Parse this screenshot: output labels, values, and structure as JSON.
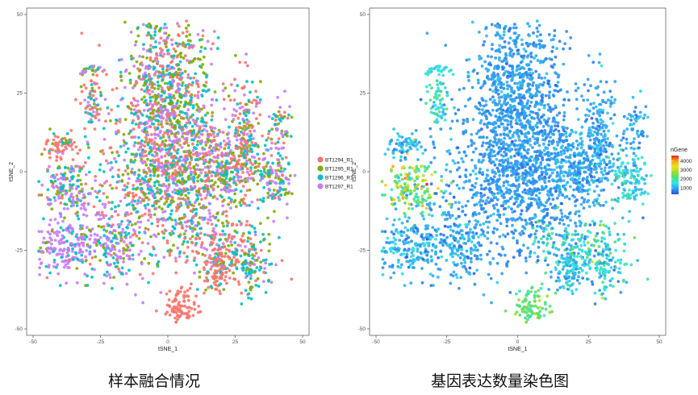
{
  "captions": [
    "样本融合情况",
    "基因表达数量染色图"
  ],
  "chart_data": [
    {
      "type": "scatter",
      "title": "",
      "xlabel": "tSNE_1",
      "ylabel": "tSNE_2",
      "xlim": [
        -50,
        50
      ],
      "ylim": [
        -50,
        50
      ],
      "xticks": [
        "-50",
        "-25",
        "0",
        "25",
        "50"
      ],
      "yticks": [
        "-50",
        "-25",
        "0",
        "25",
        "50"
      ],
      "color_by": "sample",
      "legend": "right",
      "series": [
        {
          "name": "BT1294_R1",
          "color": "#F8766D"
        },
        {
          "name": "BT1295_R1",
          "color": "#7CAE00"
        },
        {
          "name": "BT1296_R1",
          "color": "#00BFC4"
        },
        {
          "name": "BT1297_R1",
          "color": "#C77CFF"
        }
      ],
      "clusters": [
        {
          "x": 0,
          "y": 25,
          "sx": 8,
          "sy": 13,
          "n": 750,
          "mix": [
            0.25,
            0.25,
            0.25,
            0.25
          ]
        },
        {
          "x": 1,
          "y": -2,
          "sx": 13,
          "sy": 14,
          "n": 1100,
          "mix": [
            0.25,
            0.25,
            0.25,
            0.25
          ]
        },
        {
          "x": 22,
          "y": 2,
          "sx": 8,
          "sy": 6,
          "n": 300,
          "mix": [
            0.28,
            0.18,
            0.24,
            0.3
          ]
        },
        {
          "x": 40,
          "y": -3,
          "sx": 4,
          "sy": 5,
          "n": 120,
          "mix": [
            0.1,
            0.2,
            0.4,
            0.3
          ]
        },
        {
          "x": 29,
          "y": 14,
          "sx": 3,
          "sy": 8,
          "n": 140,
          "mix": [
            0.4,
            0.2,
            0.2,
            0.2
          ]
        },
        {
          "x": 42,
          "y": 15,
          "sx": 2,
          "sy": 4,
          "n": 50,
          "mix": [
            0.2,
            0.2,
            0.2,
            0.4
          ]
        },
        {
          "x": -38,
          "y": -5,
          "sx": 5,
          "sy": 4,
          "n": 160,
          "mix": [
            0.1,
            0.2,
            0.3,
            0.4
          ]
        },
        {
          "x": -39,
          "y": -23,
          "sx": 7,
          "sy": 5,
          "n": 250,
          "mix": [
            0.05,
            0.1,
            0.2,
            0.65
          ]
        },
        {
          "x": -20,
          "y": -24,
          "sx": 5,
          "sy": 6,
          "n": 150,
          "mix": [
            0.05,
            0.15,
            0.3,
            0.5
          ]
        },
        {
          "x": -40,
          "y": 8,
          "sx": 4,
          "sy": 2,
          "n": 70,
          "mix": [
            0.7,
            0.1,
            0.1,
            0.1
          ]
        },
        {
          "x": -28,
          "y": 22,
          "sx": 2,
          "sy": 4,
          "n": 60,
          "mix": [
            0.4,
            0.2,
            0.2,
            0.2
          ]
        },
        {
          "x": -28,
          "y": 32,
          "sx": 2,
          "sy": 1,
          "n": 25,
          "mix": [
            0.2,
            0.2,
            0.2,
            0.4
          ]
        },
        {
          "x": 22,
          "y": -25,
          "sx": 7,
          "sy": 5,
          "n": 170,
          "mix": [
            0.55,
            0.1,
            0.2,
            0.15
          ]
        },
        {
          "x": 32,
          "y": -29,
          "sx": 4,
          "sy": 5,
          "n": 90,
          "mix": [
            0.1,
            0.2,
            0.55,
            0.15
          ]
        },
        {
          "x": 18,
          "y": -31,
          "sx": 3,
          "sy": 4,
          "n": 70,
          "mix": [
            0.8,
            0.05,
            0.1,
            0.05
          ]
        },
        {
          "x": 5,
          "y": -43,
          "sx": 3,
          "sy": 3,
          "n": 90,
          "mix": [
            1,
            0,
            0,
            0
          ]
        }
      ]
    },
    {
      "type": "scatter",
      "title": "",
      "xlabel": "tSNE_1",
      "ylabel": "tSNE_2",
      "xlim": [
        -50,
        50
      ],
      "ylim": [
        -50,
        50
      ],
      "xticks": [
        "-50",
        "-25",
        "0",
        "25",
        "50"
      ],
      "yticks": [
        "-50",
        "-25",
        "0",
        "25",
        "50"
      ],
      "color_by": "nGene",
      "legend": "right",
      "legend_title": "nGene",
      "colorbar": {
        "min": 300,
        "max": 4600,
        "ticks": [
          "4000",
          "3000",
          "2000",
          "1000"
        ],
        "tick_values": [
          4000,
          3000,
          2000,
          1000
        ],
        "colors": [
          "#2c4fe0",
          "#2f9cf0",
          "#2ee6e6",
          "#48e07a",
          "#9ade2a",
          "#f0e020",
          "#f5a818",
          "#e8221c"
        ]
      },
      "clusters": [
        {
          "x": 0,
          "y": 25,
          "sx": 8,
          "sy": 13,
          "n": 750,
          "g": 900,
          "gs": 180
        },
        {
          "x": 1,
          "y": -2,
          "sx": 13,
          "sy": 14,
          "n": 1100,
          "g": 900,
          "gs": 180
        },
        {
          "x": 22,
          "y": 2,
          "sx": 8,
          "sy": 6,
          "n": 300,
          "g": 1000,
          "gs": 250
        },
        {
          "x": 40,
          "y": -3,
          "sx": 4,
          "sy": 5,
          "n": 120,
          "g": 1400,
          "gs": 350
        },
        {
          "x": 29,
          "y": 14,
          "sx": 3,
          "sy": 8,
          "n": 140,
          "g": 1000,
          "gs": 250
        },
        {
          "x": 42,
          "y": 15,
          "sx": 2,
          "sy": 4,
          "n": 50,
          "g": 1000,
          "gs": 250
        },
        {
          "x": -38,
          "y": -5,
          "sx": 5,
          "sy": 4,
          "n": 160,
          "g": 2500,
          "gs": 800
        },
        {
          "x": -39,
          "y": -23,
          "sx": 7,
          "sy": 5,
          "n": 250,
          "g": 1100,
          "gs": 300
        },
        {
          "x": -20,
          "y": -24,
          "sx": 5,
          "sy": 6,
          "n": 150,
          "g": 1000,
          "gs": 300
        },
        {
          "x": -40,
          "y": 8,
          "sx": 4,
          "sy": 2,
          "n": 70,
          "g": 1100,
          "gs": 250
        },
        {
          "x": -28,
          "y": 22,
          "sx": 2,
          "sy": 4,
          "n": 60,
          "g": 1600,
          "gs": 400
        },
        {
          "x": -28,
          "y": 32,
          "sx": 2,
          "sy": 1,
          "n": 25,
          "g": 1500,
          "gs": 300
        },
        {
          "x": 22,
          "y": -25,
          "sx": 7,
          "sy": 5,
          "n": 170,
          "g": 1700,
          "gs": 450
        },
        {
          "x": 32,
          "y": -29,
          "sx": 4,
          "sy": 5,
          "n": 90,
          "g": 1500,
          "gs": 450
        },
        {
          "x": 18,
          "y": -31,
          "sx": 3,
          "sy": 4,
          "n": 70,
          "g": 1200,
          "gs": 300
        },
        {
          "x": 5,
          "y": -43,
          "sx": 3,
          "sy": 3,
          "n": 90,
          "g": 2300,
          "gs": 350
        }
      ]
    }
  ]
}
